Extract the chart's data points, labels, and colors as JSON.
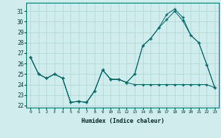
{
  "bg_color": "#d0ecec",
  "grid_color": "#a8d4d4",
  "line_color": "#006666",
  "xlabel": "Humidex (Indice chaleur)",
  "xlim": [
    -0.5,
    23.5
  ],
  "ylim": [
    21.8,
    31.8
  ],
  "yticks": [
    22,
    23,
    24,
    25,
    26,
    27,
    28,
    29,
    30,
    31
  ],
  "xtick_labels": [
    "0",
    "1",
    "2",
    "3",
    "4",
    "5",
    "6",
    "7",
    "8",
    "9",
    "10",
    "11",
    "12",
    "13",
    "14",
    "15",
    "16",
    "17",
    "18",
    "19",
    "20",
    "21",
    "22",
    "23"
  ],
  "series1_x": [
    0,
    1,
    2,
    3,
    4,
    5,
    6,
    7,
    8,
    9,
    10,
    11,
    12,
    13,
    14,
    15,
    16,
    17,
    18,
    19,
    20,
    21,
    22,
    23
  ],
  "series1_y": [
    26.6,
    25.0,
    24.6,
    25.0,
    24.6,
    22.3,
    22.4,
    22.3,
    23.4,
    25.4,
    24.5,
    24.5,
    24.2,
    24.0,
    24.0,
    24.0,
    24.0,
    24.0,
    24.0,
    24.0,
    24.0,
    24.0,
    24.0,
    23.7
  ],
  "series2_x": [
    0,
    1,
    2,
    3,
    4,
    5,
    6,
    7,
    8,
    9,
    10,
    11,
    12,
    13,
    14,
    15,
    16,
    17,
    18,
    19,
    20,
    21,
    22,
    23
  ],
  "series2_y": [
    26.6,
    25.0,
    24.6,
    25.0,
    24.6,
    22.3,
    22.4,
    22.3,
    23.4,
    25.4,
    24.5,
    24.5,
    24.2,
    25.0,
    27.7,
    28.4,
    29.4,
    30.2,
    31.0,
    30.1,
    28.7,
    28.0,
    25.9,
    23.7
  ],
  "series3_x": [
    0,
    1,
    2,
    3,
    4,
    5,
    6,
    7,
    8,
    9,
    10,
    11,
    12,
    13,
    14,
    15,
    16,
    17,
    18,
    19,
    20,
    21,
    22,
    23
  ],
  "series3_y": [
    26.6,
    25.0,
    24.6,
    25.0,
    24.6,
    22.3,
    22.4,
    22.3,
    23.4,
    25.4,
    24.5,
    24.5,
    24.2,
    25.0,
    27.7,
    28.4,
    29.4,
    30.7,
    31.2,
    30.4,
    28.7,
    28.0,
    25.9,
    23.7
  ]
}
